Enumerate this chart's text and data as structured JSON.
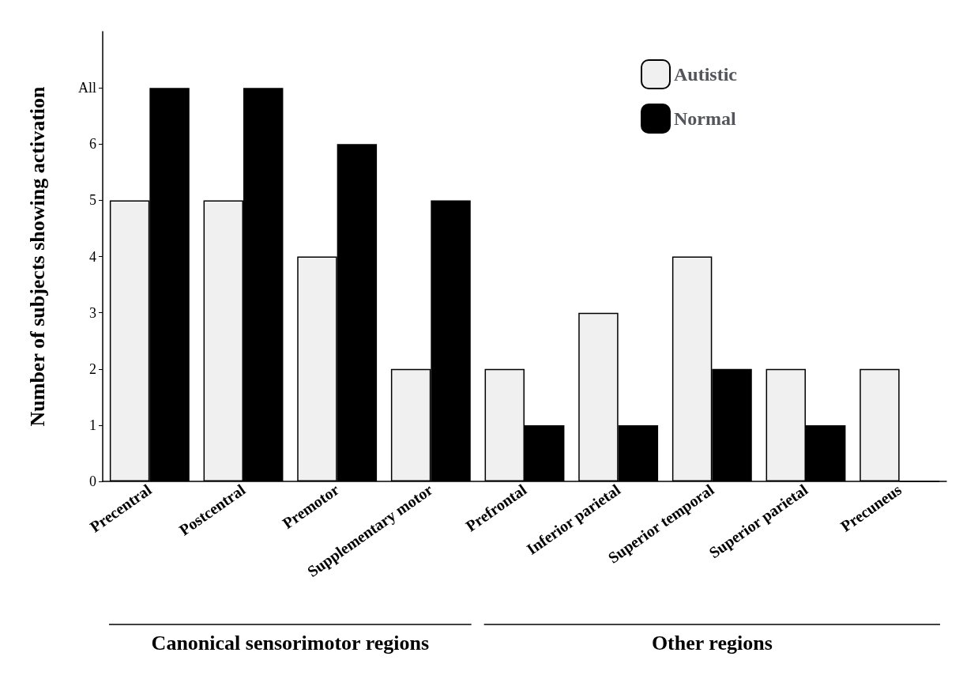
{
  "chart_data": {
    "type": "bar",
    "ylabel": "Number of subjects showing activation",
    "categories": [
      "Precentral",
      "Postcentral",
      "Premotor",
      "Supplementary motor",
      "Prefrontal",
      "Inferior parietal",
      "Superior temporal",
      "Superior parietal",
      "Precuneus"
    ],
    "series": [
      {
        "name": "Autistic",
        "color": "#f0f0f0",
        "values": [
          5,
          5,
          4,
          2,
          2,
          3,
          4,
          2,
          2
        ]
      },
      {
        "name": "Normal",
        "color": "#000000",
        "values": [
          7,
          7,
          6,
          5,
          1,
          1,
          2,
          1,
          0
        ]
      }
    ],
    "ylim": [
      0,
      8
    ],
    "yticks": [
      0,
      1,
      2,
      3,
      4,
      5,
      6,
      {
        "value": 7,
        "label": "All"
      }
    ],
    "grid": false,
    "legend": "top right",
    "annotations": [
      "Canonical sensorimotor regions",
      "Other regions"
    ]
  }
}
